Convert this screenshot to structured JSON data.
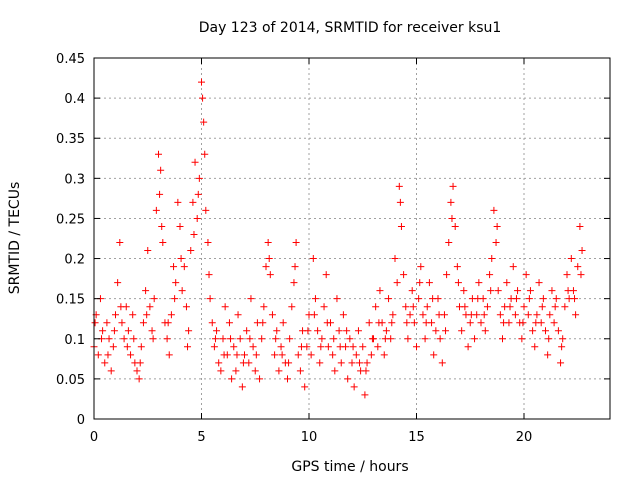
{
  "chart_data": {
    "type": "scatter",
    "title": "Day 123 of 2014, SRMTID for receiver ksu1",
    "xlabel": "GPS time / hours",
    "ylabel": "SRMTID / TECUs",
    "xlim": [
      0,
      24
    ],
    "ylim": [
      0,
      0.45
    ],
    "x_ticks": [
      "0",
      "5",
      "10",
      "15",
      "20"
    ],
    "y_ticks": [
      "0",
      "0.05",
      "0.1",
      "0.15",
      "0.2",
      "0.25",
      "0.3",
      "0.35",
      "0.4",
      "0.45"
    ],
    "grid": true,
    "marker": "+",
    "color": "#ff0000",
    "series": [
      {
        "name": "SRMTID",
        "points": [
          [
            0.0,
            0.09
          ],
          [
            0.1,
            0.13
          ],
          [
            0.2,
            0.08
          ],
          [
            0.3,
            0.15
          ],
          [
            0.4,
            0.11
          ],
          [
            0.5,
            0.07
          ],
          [
            0.6,
            0.12
          ],
          [
            0.7,
            0.1
          ],
          [
            0.8,
            0.06
          ],
          [
            0.9,
            0.09
          ],
          [
            1.0,
            0.13
          ],
          [
            1.1,
            0.17
          ],
          [
            1.2,
            0.22
          ],
          [
            1.3,
            0.12
          ],
          [
            1.4,
            0.1
          ],
          [
            1.5,
            0.14
          ],
          [
            1.6,
            0.11
          ],
          [
            1.7,
            0.08
          ],
          [
            1.8,
            0.13
          ],
          [
            1.9,
            0.07
          ],
          [
            2.0,
            0.06
          ],
          [
            2.1,
            0.05
          ],
          [
            2.2,
            0.09
          ],
          [
            2.3,
            0.12
          ],
          [
            2.4,
            0.16
          ],
          [
            2.5,
            0.21
          ],
          [
            2.6,
            0.14
          ],
          [
            2.7,
            0.11
          ],
          [
            2.8,
            0.15
          ],
          [
            2.9,
            0.26
          ],
          [
            3.0,
            0.33
          ],
          [
            3.1,
            0.31
          ],
          [
            3.2,
            0.22
          ],
          [
            3.3,
            0.12
          ],
          [
            3.4,
            0.1
          ],
          [
            3.5,
            0.08
          ],
          [
            3.6,
            0.13
          ],
          [
            3.7,
            0.19
          ],
          [
            3.8,
            0.17
          ],
          [
            3.9,
            0.27
          ],
          [
            4.0,
            0.24
          ],
          [
            4.1,
            0.16
          ],
          [
            4.2,
            0.19
          ],
          [
            4.3,
            0.14
          ],
          [
            4.4,
            0.11
          ],
          [
            4.5,
            0.21
          ],
          [
            4.6,
            0.27
          ],
          [
            4.7,
            0.32
          ],
          [
            4.8,
            0.25
          ],
          [
            4.9,
            0.3
          ],
          [
            5.0,
            0.42
          ],
          [
            5.05,
            0.4
          ],
          [
            5.1,
            0.37
          ],
          [
            5.2,
            0.26
          ],
          [
            5.3,
            0.22
          ],
          [
            5.4,
            0.15
          ],
          [
            5.5,
            0.12
          ],
          [
            5.6,
            0.09
          ],
          [
            5.7,
            0.11
          ],
          [
            5.8,
            0.07
          ],
          [
            5.9,
            0.06
          ],
          [
            6.0,
            0.1
          ],
          [
            6.1,
            0.14
          ],
          [
            6.2,
            0.08
          ],
          [
            6.3,
            0.12
          ],
          [
            6.4,
            0.05
          ],
          [
            6.5,
            0.09
          ],
          [
            6.6,
            0.06
          ],
          [
            6.7,
            0.13
          ],
          [
            6.8,
            0.1
          ],
          [
            6.9,
            0.04
          ],
          [
            7.0,
            0.08
          ],
          [
            7.1,
            0.11
          ],
          [
            7.2,
            0.07
          ],
          [
            7.3,
            0.15
          ],
          [
            7.4,
            0.09
          ],
          [
            7.5,
            0.06
          ],
          [
            7.6,
            0.12
          ],
          [
            7.7,
            0.05
          ],
          [
            7.8,
            0.1
          ],
          [
            7.9,
            0.14
          ],
          [
            8.0,
            0.19
          ],
          [
            8.1,
            0.22
          ],
          [
            8.2,
            0.18
          ],
          [
            8.3,
            0.13
          ],
          [
            8.4,
            0.08
          ],
          [
            8.5,
            0.11
          ],
          [
            8.6,
            0.06
          ],
          [
            8.7,
            0.09
          ],
          [
            8.8,
            0.12
          ],
          [
            8.9,
            0.07
          ],
          [
            9.0,
            0.05
          ],
          [
            9.1,
            0.1
          ],
          [
            9.2,
            0.14
          ],
          [
            9.3,
            0.17
          ],
          [
            9.4,
            0.22
          ],
          [
            9.5,
            0.08
          ],
          [
            9.6,
            0.06
          ],
          [
            9.7,
            0.11
          ],
          [
            9.8,
            0.04
          ],
          [
            9.9,
            0.09
          ],
          [
            10.0,
            0.13
          ],
          [
            10.1,
            0.08
          ],
          [
            10.2,
            0.2
          ],
          [
            10.3,
            0.15
          ],
          [
            10.4,
            0.11
          ],
          [
            10.5,
            0.07
          ],
          [
            10.6,
            0.1
          ],
          [
            10.7,
            0.14
          ],
          [
            10.8,
            0.18
          ],
          [
            10.9,
            0.09
          ],
          [
            11.0,
            0.12
          ],
          [
            11.1,
            0.08
          ],
          [
            11.2,
            0.06
          ],
          [
            11.3,
            0.15
          ],
          [
            11.4,
            0.11
          ],
          [
            11.5,
            0.07
          ],
          [
            11.6,
            0.13
          ],
          [
            11.7,
            0.09
          ],
          [
            11.8,
            0.05
          ],
          [
            11.9,
            0.1
          ],
          [
            12.0,
            0.07
          ],
          [
            12.1,
            0.04
          ],
          [
            12.2,
            0.08
          ],
          [
            12.3,
            0.11
          ],
          [
            12.4,
            0.06
          ],
          [
            12.5,
            0.09
          ],
          [
            12.6,
            0.03
          ],
          [
            12.7,
            0.07
          ],
          [
            12.8,
            0.12
          ],
          [
            12.9,
            0.08
          ],
          [
            13.0,
            0.1
          ],
          [
            13.1,
            0.14
          ],
          [
            13.2,
            0.09
          ],
          [
            13.3,
            0.16
          ],
          [
            13.4,
            0.12
          ],
          [
            13.5,
            0.08
          ],
          [
            13.6,
            0.11
          ],
          [
            13.7,
            0.15
          ],
          [
            13.8,
            0.1
          ],
          [
            13.9,
            0.13
          ],
          [
            14.0,
            0.2
          ],
          [
            14.1,
            0.17
          ],
          [
            14.2,
            0.29
          ],
          [
            14.3,
            0.24
          ],
          [
            14.4,
            0.18
          ],
          [
            14.5,
            0.14
          ],
          [
            14.6,
            0.1
          ],
          [
            14.7,
            0.13
          ],
          [
            14.8,
            0.16
          ],
          [
            14.9,
            0.12
          ],
          [
            15.0,
            0.09
          ],
          [
            15.1,
            0.15
          ],
          [
            15.2,
            0.19
          ],
          [
            15.3,
            0.13
          ],
          [
            15.4,
            0.1
          ],
          [
            15.5,
            0.14
          ],
          [
            15.6,
            0.17
          ],
          [
            15.7,
            0.12
          ],
          [
            15.8,
            0.08
          ],
          [
            15.9,
            0.11
          ],
          [
            16.0,
            0.15
          ],
          [
            16.1,
            0.1
          ],
          [
            16.2,
            0.07
          ],
          [
            16.3,
            0.13
          ],
          [
            16.4,
            0.18
          ],
          [
            16.5,
            0.22
          ],
          [
            16.6,
            0.27
          ],
          [
            16.7,
            0.29
          ],
          [
            16.8,
            0.24
          ],
          [
            16.9,
            0.19
          ],
          [
            17.0,
            0.14
          ],
          [
            17.1,
            0.11
          ],
          [
            17.2,
            0.16
          ],
          [
            17.3,
            0.13
          ],
          [
            17.4,
            0.09
          ],
          [
            17.5,
            0.12
          ],
          [
            17.6,
            0.15
          ],
          [
            17.7,
            0.1
          ],
          [
            17.8,
            0.13
          ],
          [
            17.9,
            0.17
          ],
          [
            18.0,
            0.12
          ],
          [
            18.1,
            0.15
          ],
          [
            18.2,
            0.11
          ],
          [
            18.3,
            0.14
          ],
          [
            18.4,
            0.18
          ],
          [
            18.5,
            0.2
          ],
          [
            18.6,
            0.26
          ],
          [
            18.7,
            0.22
          ],
          [
            18.8,
            0.16
          ],
          [
            18.9,
            0.13
          ],
          [
            19.0,
            0.1
          ],
          [
            19.1,
            0.14
          ],
          [
            19.2,
            0.17
          ],
          [
            19.3,
            0.12
          ],
          [
            19.4,
            0.15
          ],
          [
            19.5,
            0.19
          ],
          [
            19.6,
            0.13
          ],
          [
            19.7,
            0.16
          ],
          [
            19.8,
            0.12
          ],
          [
            19.9,
            0.1
          ],
          [
            20.0,
            0.14
          ],
          [
            20.1,
            0.18
          ],
          [
            20.2,
            0.13
          ],
          [
            20.3,
            0.16
          ],
          [
            20.4,
            0.11
          ],
          [
            20.5,
            0.09
          ],
          [
            20.6,
            0.13
          ],
          [
            20.7,
            0.17
          ],
          [
            20.8,
            0.12
          ],
          [
            20.9,
            0.15
          ],
          [
            21.0,
            0.11
          ],
          [
            21.1,
            0.08
          ],
          [
            21.2,
            0.13
          ],
          [
            21.3,
            0.16
          ],
          [
            21.4,
            0.12
          ],
          [
            21.5,
            0.15
          ],
          [
            21.6,
            0.11
          ],
          [
            21.7,
            0.07
          ],
          [
            21.8,
            0.1
          ],
          [
            21.9,
            0.14
          ],
          [
            22.0,
            0.18
          ],
          [
            22.1,
            0.15
          ],
          [
            22.2,
            0.2
          ],
          [
            22.3,
            0.16
          ],
          [
            22.4,
            0.13
          ],
          [
            22.5,
            0.19
          ],
          [
            22.6,
            0.24
          ],
          [
            22.7,
            0.21
          ],
          [
            0.05,
            0.12
          ],
          [
            0.35,
            0.1
          ],
          [
            0.65,
            0.08
          ],
          [
            0.95,
            0.11
          ],
          [
            1.25,
            0.14
          ],
          [
            1.55,
            0.09
          ],
          [
            1.85,
            0.1
          ],
          [
            2.15,
            0.07
          ],
          [
            2.45,
            0.13
          ],
          [
            2.75,
            0.1
          ],
          [
            3.05,
            0.28
          ],
          [
            3.15,
            0.24
          ],
          [
            3.45,
            0.12
          ],
          [
            3.75,
            0.15
          ],
          [
            4.05,
            0.2
          ],
          [
            4.35,
            0.09
          ],
          [
            4.65,
            0.23
          ],
          [
            4.85,
            0.28
          ],
          [
            5.15,
            0.33
          ],
          [
            5.35,
            0.18
          ],
          [
            5.65,
            0.1
          ],
          [
            6.05,
            0.08
          ],
          [
            6.35,
            0.1
          ],
          [
            6.65,
            0.08
          ],
          [
            6.95,
            0.07
          ],
          [
            7.25,
            0.1
          ],
          [
            7.55,
            0.08
          ],
          [
            7.85,
            0.12
          ],
          [
            8.15,
            0.2
          ],
          [
            8.45,
            0.1
          ],
          [
            8.75,
            0.08
          ],
          [
            9.05,
            0.07
          ],
          [
            9.35,
            0.19
          ],
          [
            9.65,
            0.09
          ],
          [
            9.95,
            0.11
          ],
          [
            10.25,
            0.13
          ],
          [
            10.55,
            0.09
          ],
          [
            10.85,
            0.12
          ],
          [
            11.15,
            0.1
          ],
          [
            11.45,
            0.09
          ],
          [
            11.75,
            0.11
          ],
          [
            12.05,
            0.09
          ],
          [
            12.35,
            0.07
          ],
          [
            12.65,
            0.06
          ],
          [
            12.95,
            0.1
          ],
          [
            13.25,
            0.12
          ],
          [
            13.55,
            0.1
          ],
          [
            13.85,
            0.12
          ],
          [
            14.25,
            0.27
          ],
          [
            14.55,
            0.12
          ],
          [
            14.85,
            0.14
          ],
          [
            15.15,
            0.17
          ],
          [
            15.45,
            0.12
          ],
          [
            15.75,
            0.15
          ],
          [
            16.05,
            0.13
          ],
          [
            16.35,
            0.11
          ],
          [
            16.65,
            0.25
          ],
          [
            16.95,
            0.17
          ],
          [
            17.25,
            0.14
          ],
          [
            17.55,
            0.13
          ],
          [
            17.85,
            0.15
          ],
          [
            18.15,
            0.13
          ],
          [
            18.45,
            0.16
          ],
          [
            18.75,
            0.24
          ],
          [
            19.05,
            0.12
          ],
          [
            19.35,
            0.14
          ],
          [
            19.65,
            0.15
          ],
          [
            19.95,
            0.12
          ],
          [
            20.25,
            0.15
          ],
          [
            20.55,
            0.12
          ],
          [
            20.85,
            0.14
          ],
          [
            21.15,
            0.1
          ],
          [
            21.45,
            0.14
          ],
          [
            21.75,
            0.09
          ],
          [
            22.05,
            0.16
          ],
          [
            22.35,
            0.15
          ],
          [
            22.65,
            0.18
          ]
        ]
      }
    ]
  }
}
